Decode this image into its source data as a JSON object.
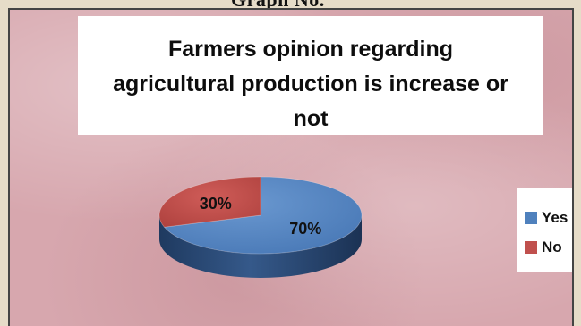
{
  "page": {
    "heading_fragment": "Graph No."
  },
  "chart_data": {
    "type": "pie",
    "title_lines": [
      "Farmers opinion regarding",
      "agricultural production is increase or",
      "not"
    ],
    "categories": [
      "Yes",
      "No"
    ],
    "values": [
      70,
      30
    ],
    "labels": [
      "70%",
      "30%"
    ],
    "colors": [
      "#4f81bd",
      "#c0504d"
    ],
    "legend_position": "right",
    "three_d": true
  }
}
